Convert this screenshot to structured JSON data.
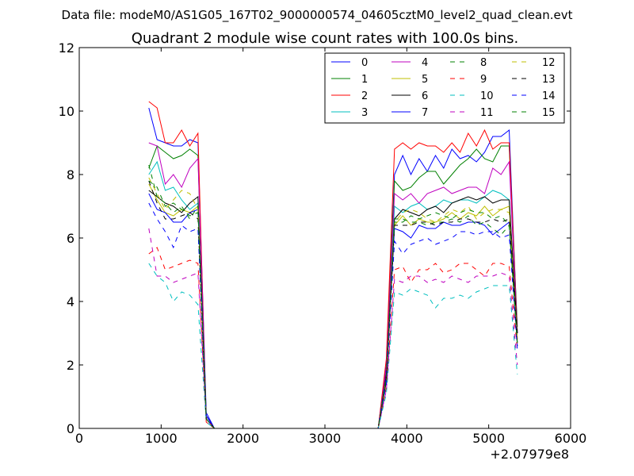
{
  "chart_data": {
    "type": "line",
    "suptitle": "Data file: modeM0/AS1G05_167T02_9000000574_04605cztM0_level2_quad_clean.evt",
    "title": "Quadrant 2 module wise count rates with 100.0s bins.",
    "xlabel": "",
    "ylabel": "",
    "x_offset_label": "+2.07979e8",
    "xlim": [
      0,
      6000
    ],
    "ylim": [
      0,
      12
    ],
    "x_ticks": [
      0,
      1000,
      2000,
      3000,
      4000,
      5000,
      6000
    ],
    "y_ticks": [
      0,
      2,
      4,
      6,
      8,
      10,
      12
    ],
    "x_tick_labels": [
      "0",
      "1000",
      "2000",
      "3000",
      "4000",
      "5000",
      "6000"
    ],
    "y_tick_labels": [
      "0",
      "2",
      "4",
      "6",
      "8",
      "10",
      "12"
    ],
    "grid": false,
    "legend": "top-right",
    "legend_columns": 4,
    "x": [
      850,
      950,
      1050,
      1150,
      1250,
      1350,
      1450,
      1550,
      1650,
      1750,
      3650,
      3750,
      3850,
      3950,
      4050,
      4150,
      4250,
      4350,
      4450,
      4550,
      4650,
      4750,
      4850,
      4950,
      5050,
      5150,
      5250,
      5350
    ],
    "series": [
      {
        "name": "0",
        "color": "#0000ff",
        "dash": "solid",
        "values": [
          10.1,
          9.1,
          9.0,
          8.9,
          8.9,
          9.1,
          9.0,
          0.5,
          0,
          0,
          0,
          2.0,
          8.0,
          8.6,
          8.0,
          8.5,
          8.1,
          8.6,
          8.2,
          8.8,
          8.5,
          8.6,
          8.4,
          8.7,
          9.2,
          9.2,
          9.4,
          3.0
        ]
      },
      {
        "name": "1",
        "color": "#008000",
        "dash": "solid",
        "values": [
          8.2,
          8.9,
          8.7,
          8.5,
          8.6,
          8.8,
          8.6,
          0.4,
          0,
          0,
          0,
          1.8,
          7.8,
          7.5,
          7.6,
          7.9,
          8.1,
          8.1,
          7.7,
          8.0,
          8.3,
          8.5,
          8.8,
          8.5,
          8.4,
          8.9,
          8.9,
          3.2
        ]
      },
      {
        "name": "2",
        "color": "#ff0000",
        "dash": "solid",
        "values": [
          10.3,
          10.1,
          9.0,
          9.0,
          9.4,
          8.9,
          9.3,
          0.2,
          0,
          0,
          0,
          2.2,
          8.8,
          9.0,
          8.8,
          9.0,
          8.9,
          8.9,
          8.7,
          9.0,
          8.7,
          9.3,
          8.9,
          9.4,
          8.8,
          9.0,
          9.0,
          3.0
        ]
      },
      {
        "name": "3",
        "color": "#00bfbf",
        "dash": "solid",
        "values": [
          8.0,
          8.4,
          7.5,
          7.6,
          7.2,
          6.9,
          7.1,
          0.4,
          0,
          0,
          0,
          1.6,
          7.0,
          6.8,
          7.0,
          7.1,
          6.9,
          7.0,
          7.2,
          7.1,
          7.2,
          7.2,
          7.1,
          7.3,
          7.5,
          7.4,
          7.2,
          3.0
        ]
      },
      {
        "name": "4",
        "color": "#bf00bf",
        "dash": "solid",
        "values": [
          9.0,
          8.9,
          7.7,
          8.0,
          7.6,
          8.2,
          8.5,
          0.4,
          0,
          0,
          0,
          1.9,
          7.4,
          7.2,
          7.4,
          7.1,
          7.4,
          7.5,
          7.6,
          7.4,
          7.5,
          7.6,
          7.6,
          7.4,
          8.2,
          8.0,
          8.4,
          3.0
        ]
      },
      {
        "name": "5",
        "color": "#bfbf00",
        "dash": "solid",
        "values": [
          7.7,
          7.2,
          6.8,
          6.7,
          6.9,
          6.8,
          7.0,
          0.3,
          0,
          0,
          0,
          1.6,
          6.4,
          6.7,
          6.4,
          6.6,
          6.5,
          6.5,
          6.6,
          6.8,
          6.6,
          6.8,
          6.7,
          7.0,
          6.7,
          6.9,
          7.0,
          2.8
        ]
      },
      {
        "name": "6",
        "color": "#000000",
        "dash": "solid",
        "values": [
          7.5,
          7.3,
          7.1,
          7.0,
          6.8,
          7.1,
          7.3,
          0.4,
          0,
          0,
          0,
          1.7,
          6.6,
          6.9,
          6.8,
          6.7,
          6.9,
          7.0,
          6.8,
          7.1,
          7.2,
          7.3,
          7.2,
          7.3,
          7.1,
          7.2,
          7.2,
          3.0
        ]
      },
      {
        "name": "7",
        "color": "#0000ff",
        "dash": "solid",
        "values": [
          7.4,
          6.9,
          6.8,
          6.5,
          6.5,
          6.8,
          6.9,
          0.4,
          0,
          0,
          0,
          1.6,
          6.3,
          6.2,
          6.0,
          6.4,
          6.3,
          6.3,
          6.5,
          6.4,
          6.4,
          6.5,
          6.5,
          6.4,
          6.1,
          6.3,
          6.5,
          2.6
        ]
      },
      {
        "name": "8",
        "color": "#008000",
        "dash": "dashed",
        "values": [
          8.3,
          7.3,
          7.1,
          6.8,
          7.0,
          6.6,
          7.0,
          0.3,
          0,
          0,
          0,
          1.5,
          6.6,
          6.6,
          6.5,
          6.5,
          6.4,
          6.5,
          6.5,
          6.6,
          6.5,
          6.7,
          6.4,
          6.5,
          6.3,
          6.1,
          6.4,
          2.7
        ]
      },
      {
        "name": "9",
        "color": "#ff0000",
        "dash": "dashed",
        "values": [
          5.5,
          5.7,
          5.0,
          5.1,
          5.2,
          5.3,
          5.2,
          0.3,
          0,
          0,
          0,
          1.3,
          5.0,
          5.1,
          4.6,
          5.0,
          5.0,
          5.2,
          4.9,
          5.0,
          5.2,
          5.2,
          5.0,
          4.8,
          5.2,
          5.2,
          5.1,
          2.5
        ]
      },
      {
        "name": "10",
        "color": "#00bfbf",
        "dash": "dashed",
        "values": [
          5.2,
          4.8,
          4.6,
          4.0,
          4.3,
          4.2,
          3.9,
          0.2,
          0,
          0,
          0,
          1.1,
          4.3,
          4.2,
          4.4,
          4.3,
          4.2,
          3.8,
          4.1,
          4.1,
          4.2,
          4.1,
          4.3,
          4.4,
          4.5,
          4.5,
          4.5,
          1.7
        ]
      },
      {
        "name": "11",
        "color": "#bf00bf",
        "dash": "dashed",
        "values": [
          6.3,
          4.8,
          4.8,
          4.6,
          4.7,
          4.8,
          4.9,
          0.3,
          0,
          0,
          0,
          1.2,
          4.7,
          4.6,
          4.8,
          4.8,
          4.6,
          4.7,
          4.6,
          4.8,
          4.7,
          4.6,
          4.8,
          4.8,
          4.8,
          4.9,
          4.8,
          2.0
        ]
      },
      {
        "name": "12",
        "color": "#bfbf00",
        "dash": "dashed",
        "values": [
          7.9,
          7.4,
          6.9,
          7.2,
          7.5,
          7.4,
          6.9,
          0.3,
          0,
          0,
          0,
          1.6,
          6.5,
          6.8,
          6.9,
          6.8,
          6.6,
          6.5,
          6.7,
          6.9,
          6.8,
          7.0,
          6.6,
          6.8,
          6.9,
          6.9,
          6.8,
          2.8
        ]
      },
      {
        "name": "13",
        "color": "#000000",
        "dash": "dashed",
        "values": [
          7.8,
          7.1,
          6.6,
          6.6,
          6.7,
          6.8,
          6.6,
          0.3,
          0,
          0,
          0,
          1.5,
          6.4,
          6.4,
          6.4,
          6.5,
          6.5,
          6.4,
          6.5,
          6.5,
          6.6,
          6.6,
          6.5,
          6.5,
          6.6,
          6.5,
          6.6,
          2.6
        ]
      },
      {
        "name": "14",
        "color": "#0000ff",
        "dash": "dashed",
        "values": [
          7.1,
          6.6,
          6.2,
          5.7,
          6.4,
          6.2,
          6.3,
          0.3,
          0,
          0,
          0,
          1.4,
          5.9,
          5.5,
          5.8,
          5.9,
          6.0,
          5.8,
          5.9,
          6.0,
          6.2,
          6.2,
          6.1,
          6.2,
          6.2,
          6.0,
          6.1,
          2.5
        ]
      },
      {
        "name": "15",
        "color": "#008000",
        "dash": "dashed",
        "values": [
          7.8,
          7.6,
          7.0,
          7.1,
          6.9,
          6.7,
          6.8,
          0.3,
          0,
          0,
          0,
          1.6,
          6.5,
          6.5,
          6.7,
          6.6,
          6.7,
          6.8,
          6.7,
          6.6,
          6.8,
          6.9,
          6.8,
          6.8,
          6.6,
          6.7,
          6.4,
          2.7
        ]
      }
    ]
  }
}
